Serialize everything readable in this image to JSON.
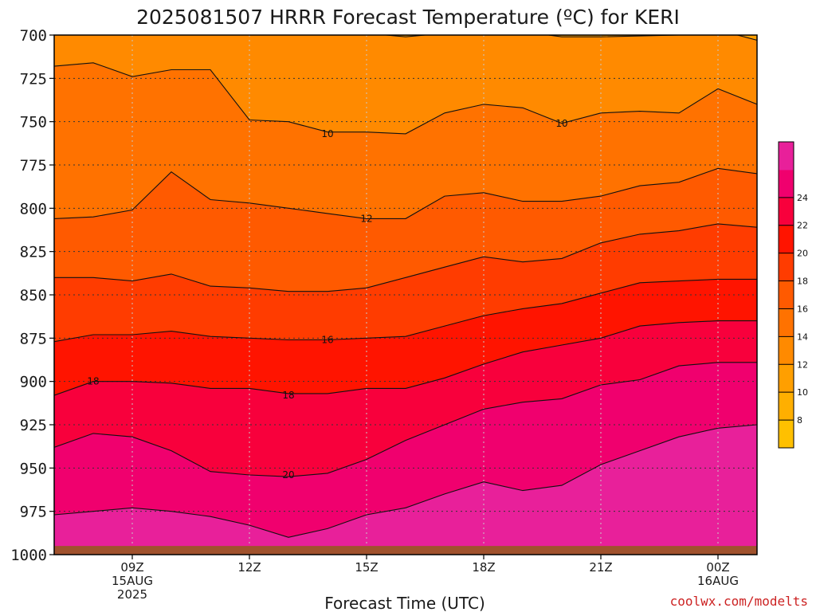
{
  "chart_data": {
    "type": "contour",
    "title": "2025081507 HRRR Forecast Temperature (ºC) for KERI",
    "xlabel": "Forecast Time (UTC)",
    "ylabel": "",
    "y_axis": {
      "ticks": [
        700,
        725,
        750,
        775,
        800,
        825,
        850,
        875,
        900,
        925,
        950,
        975,
        1000
      ],
      "range": [
        700,
        1000
      ],
      "inverted": true
    },
    "x_axis": {
      "range_hours_utc": [
        7,
        25
      ],
      "ticks": [
        {
          "hour": 9,
          "lines": [
            "09Z",
            "15AUG",
            "2025"
          ]
        },
        {
          "hour": 12,
          "lines": [
            "12Z"
          ]
        },
        {
          "hour": 15,
          "lines": [
            "15Z"
          ]
        },
        {
          "hour": 18,
          "lines": [
            "18Z"
          ]
        },
        {
          "hour": 21,
          "lines": [
            "21Z"
          ]
        },
        {
          "hour": 24,
          "lines": [
            "00Z",
            "16AUG"
          ]
        }
      ]
    },
    "grid": true,
    "colorbar": {
      "placement": "right",
      "levels": [
        6,
        8,
        10,
        12,
        14,
        16,
        18,
        20,
        22,
        24,
        26
      ],
      "tick_labels": [
        "8",
        "10",
        "12",
        "14",
        "16",
        "18",
        "20",
        "22",
        "24"
      ],
      "colors": [
        "#FFC000",
        "#FFAF00",
        "#FF9F00",
        "#FF8A00",
        "#FF7200",
        "#FF5A00",
        "#FF3C00",
        "#FF1400",
        "#F8003C",
        "#F0006E",
        "#E8209A"
      ]
    },
    "terrain_color": "#A0522D",
    "contour_labels": [
      {
        "text": "10",
        "hour": 14.0,
        "p": 757
      },
      {
        "text": "10",
        "hour": 20.0,
        "p": 751
      },
      {
        "text": "12",
        "hour": 15.0,
        "p": 806
      },
      {
        "text": "16",
        "hour": 14.0,
        "p": 876
      },
      {
        "text": "18",
        "hour": 8.0,
        "p": 900
      },
      {
        "text": "18",
        "hour": 13.0,
        "p": 908
      },
      {
        "text": "20",
        "hour": 13.0,
        "p": 954
      }
    ],
    "isotherms": [
      {
        "value": 8,
        "points": [
          [
            7,
            697
          ],
          [
            9,
            697
          ],
          [
            11,
            698
          ],
          [
            13,
            698
          ],
          [
            15,
            699
          ],
          [
            16,
            701
          ],
          [
            17,
            699
          ],
          [
            19,
            698
          ],
          [
            20,
            701
          ],
          [
            21,
            701
          ],
          [
            23,
            700
          ],
          [
            24,
            697
          ],
          [
            25,
            703
          ]
        ]
      },
      {
        "value": 10,
        "points": [
          [
            7,
            718
          ],
          [
            8,
            716
          ],
          [
            9,
            724
          ],
          [
            10,
            720
          ],
          [
            11,
            720
          ],
          [
            12,
            749
          ],
          [
            13,
            750
          ],
          [
            14,
            756
          ],
          [
            15,
            756
          ],
          [
            16,
            757
          ],
          [
            17,
            745
          ],
          [
            18,
            740
          ],
          [
            19,
            742
          ],
          [
            20,
            751
          ],
          [
            21,
            745
          ],
          [
            22,
            744
          ],
          [
            23,
            745
          ],
          [
            24,
            731
          ],
          [
            25,
            740
          ]
        ]
      },
      {
        "value": 12,
        "points": [
          [
            7,
            806
          ],
          [
            8,
            805
          ],
          [
            9,
            801
          ],
          [
            10,
            779
          ],
          [
            11,
            795
          ],
          [
            12,
            797
          ],
          [
            13,
            800
          ],
          [
            14,
            803
          ],
          [
            15,
            806
          ],
          [
            16,
            806
          ],
          [
            17,
            793
          ],
          [
            18,
            791
          ],
          [
            19,
            796
          ],
          [
            20,
            796
          ],
          [
            21,
            793
          ],
          [
            22,
            787
          ],
          [
            23,
            785
          ],
          [
            24,
            777
          ],
          [
            25,
            780
          ]
        ]
      },
      {
        "value": 14,
        "points": [
          [
            7,
            840
          ],
          [
            8,
            840
          ],
          [
            9,
            842
          ],
          [
            10,
            838
          ],
          [
            11,
            845
          ],
          [
            12,
            846
          ],
          [
            13,
            848
          ],
          [
            14,
            848
          ],
          [
            15,
            846
          ],
          [
            16,
            840
          ],
          [
            17,
            834
          ],
          [
            18,
            828
          ],
          [
            19,
            831
          ],
          [
            20,
            829
          ],
          [
            21,
            820
          ],
          [
            22,
            815
          ],
          [
            23,
            813
          ],
          [
            24,
            809
          ],
          [
            25,
            811
          ]
        ]
      },
      {
        "value": 16,
        "points": [
          [
            7,
            877
          ],
          [
            8,
            873
          ],
          [
            9,
            873
          ],
          [
            10,
            871
          ],
          [
            11,
            874
          ],
          [
            12,
            875
          ],
          [
            13,
            876
          ],
          [
            14,
            876
          ],
          [
            15,
            875
          ],
          [
            16,
            874
          ],
          [
            17,
            868
          ],
          [
            18,
            862
          ],
          [
            19,
            858
          ],
          [
            20,
            855
          ],
          [
            21,
            849
          ],
          [
            22,
            843
          ],
          [
            23,
            842
          ],
          [
            24,
            841
          ],
          [
            25,
            841
          ]
        ]
      },
      {
        "value": 18,
        "points": [
          [
            7,
            908
          ],
          [
            8,
            900
          ],
          [
            9,
            900
          ],
          [
            10,
            901
          ],
          [
            11,
            904
          ],
          [
            12,
            904
          ],
          [
            13,
            907
          ],
          [
            14,
            907
          ],
          [
            15,
            904
          ],
          [
            16,
            904
          ],
          [
            17,
            898
          ],
          [
            18,
            890
          ],
          [
            19,
            883
          ],
          [
            20,
            879
          ],
          [
            21,
            875
          ],
          [
            22,
            868
          ],
          [
            23,
            866
          ],
          [
            24,
            865
          ],
          [
            25,
            865
          ]
        ]
      },
      {
        "value": 20,
        "points": [
          [
            7,
            938
          ],
          [
            8,
            930
          ],
          [
            9,
            932
          ],
          [
            10,
            940
          ],
          [
            11,
            952
          ],
          [
            12,
            954
          ],
          [
            13,
            955
          ],
          [
            14,
            953
          ],
          [
            15,
            945
          ],
          [
            16,
            934
          ],
          [
            17,
            925
          ],
          [
            18,
            916
          ],
          [
            19,
            912
          ],
          [
            20,
            910
          ],
          [
            21,
            902
          ],
          [
            22,
            899
          ],
          [
            23,
            891
          ],
          [
            24,
            889
          ],
          [
            25,
            889
          ]
        ]
      },
      {
        "value": 22,
        "points": [
          [
            7,
            977
          ],
          [
            8,
            975
          ],
          [
            9,
            973
          ],
          [
            10,
            975
          ],
          [
            11,
            978
          ],
          [
            12,
            983
          ],
          [
            13,
            990
          ],
          [
            14,
            985
          ],
          [
            15,
            977
          ],
          [
            16,
            973
          ],
          [
            17,
            965
          ],
          [
            18,
            958
          ],
          [
            19,
            963
          ],
          [
            20,
            960
          ],
          [
            21,
            948
          ],
          [
            22,
            940
          ],
          [
            23,
            932
          ],
          [
            24,
            927
          ],
          [
            25,
            925
          ]
        ]
      }
    ]
  },
  "footer": {
    "credit": "coolwx.com/modelts"
  }
}
